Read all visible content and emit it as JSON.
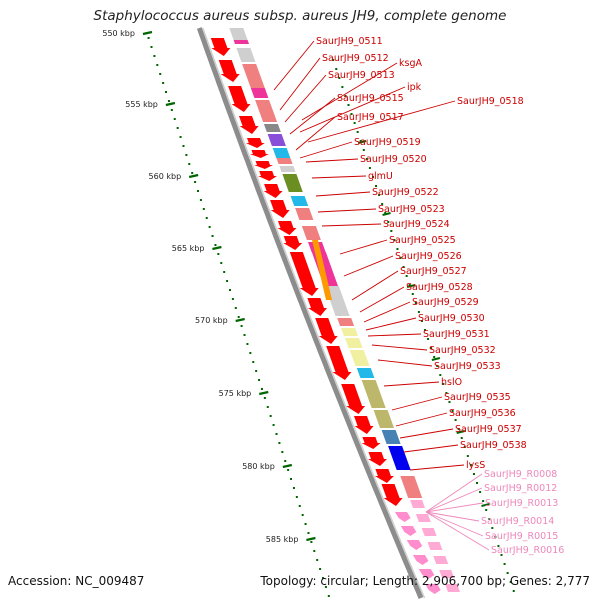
{
  "title": "Staphylococcus aureus subsp. aureus JH9, complete genome",
  "footer": {
    "accession": "Accession: NC_009487",
    "summary": "Topology: circular; Length: 2,906,700 bp; Genes: 2,777"
  },
  "colors": {
    "backbone": "#8c8c8c",
    "cds_forward_arrow": "#ff0000",
    "rna_arrow": "#ff8ccc",
    "scale_tick": "#006600",
    "label_cds": "#cc0000",
    "label_rna": "#ee88bb"
  },
  "scale": {
    "unit": "kbp",
    "ticks": [
      {
        "value": 550,
        "label": "550 kbp"
      },
      {
        "value": 555,
        "label": "555 kbp"
      },
      {
        "value": 560,
        "label": "560 kbp"
      },
      {
        "value": 565,
        "label": "565 kbp"
      },
      {
        "value": 570,
        "label": "570 kbp"
      },
      {
        "value": 575,
        "label": "575 kbp"
      },
      {
        "value": 580,
        "label": "580 kbp"
      },
      {
        "value": 585,
        "label": "585 kbp"
      }
    ]
  },
  "feature_labels": [
    {
      "text": "SaurJH9_0511",
      "kind": "cds"
    },
    {
      "text": "SaurJH9_0512",
      "kind": "cds"
    },
    {
      "text": "ksgA",
      "kind": "cds"
    },
    {
      "text": "SaurJH9_0513",
      "kind": "cds"
    },
    {
      "text": "ipk",
      "kind": "cds"
    },
    {
      "text": "SaurJH9_0515",
      "kind": "cds"
    },
    {
      "text": "SaurJH9_0518",
      "kind": "cds"
    },
    {
      "text": "SaurJH9_0517",
      "kind": "cds"
    },
    {
      "text": "SaurJH9_0519",
      "kind": "cds"
    },
    {
      "text": "SaurJH9_0520",
      "kind": "cds"
    },
    {
      "text": "glmU",
      "kind": "cds"
    },
    {
      "text": "SaurJH9_0522",
      "kind": "cds"
    },
    {
      "text": "SaurJH9_0523",
      "kind": "cds"
    },
    {
      "text": "SaurJH9_0524",
      "kind": "cds"
    },
    {
      "text": "SaurJH9_0525",
      "kind": "cds"
    },
    {
      "text": "SaurJH9_0526",
      "kind": "cds"
    },
    {
      "text": "SaurJH9_0527",
      "kind": "cds"
    },
    {
      "text": "SaurJH9_0528",
      "kind": "cds"
    },
    {
      "text": "SaurJH9_0529",
      "kind": "cds"
    },
    {
      "text": "SaurJH9_0530",
      "kind": "cds"
    },
    {
      "text": "SaurJH9_0531",
      "kind": "cds"
    },
    {
      "text": "SaurJH9_0532",
      "kind": "cds"
    },
    {
      "text": "SaurJH9_0533",
      "kind": "cds"
    },
    {
      "text": "hslO",
      "kind": "cds"
    },
    {
      "text": "SaurJH9_0535",
      "kind": "cds"
    },
    {
      "text": "SaurJH9_0536",
      "kind": "cds"
    },
    {
      "text": "SaurJH9_0537",
      "kind": "cds"
    },
    {
      "text": "SaurJH9_0538",
      "kind": "cds"
    },
    {
      "text": "lysS",
      "kind": "cds"
    },
    {
      "text": "SaurJH9_R0008",
      "kind": "rna"
    },
    {
      "text": "SaurJH9_R0012",
      "kind": "rna"
    },
    {
      "text": "SaurJH9_R0013",
      "kind": "rna"
    },
    {
      "text": "SaurJH9_R0014",
      "kind": "rna"
    },
    {
      "text": "SaurJH9_R0015",
      "kind": "rna"
    },
    {
      "text": "SaurJH9_R0016",
      "kind": "rna"
    }
  ]
}
